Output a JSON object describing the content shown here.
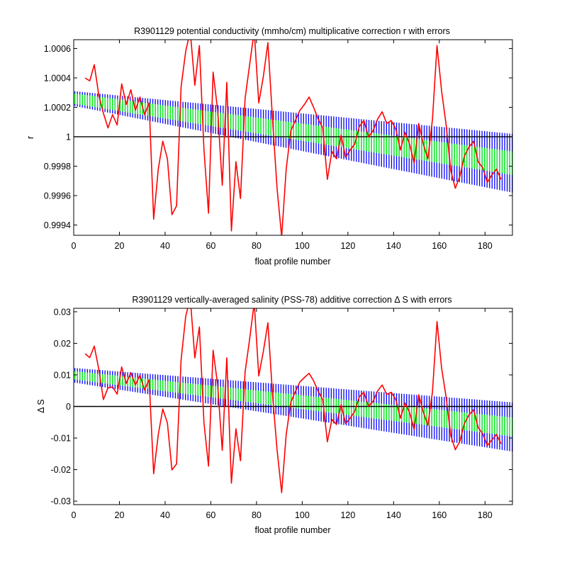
{
  "chart_data": [
    {
      "type": "line",
      "title": "R3901129 potential conductivity (mmho/cm) multiplicative correction r with errors",
      "xlabel": "float profile number",
      "ylabel": "r",
      "xlim": [
        0,
        192
      ],
      "ylim": [
        0.99933,
        1.00066
      ],
      "xticks": [
        "0",
        "20",
        "40",
        "60",
        "80",
        "100",
        "120",
        "140",
        "160",
        "180"
      ],
      "yticks": [
        {
          "value": 0.9994,
          "label": "0.9994"
        },
        {
          "value": 0.9996,
          "label": "0.9996"
        },
        {
          "value": 0.9998,
          "label": "0.9998"
        },
        {
          "value": 1.0,
          "label": "1"
        },
        {
          "value": 1.0002,
          "label": "1.0002"
        },
        {
          "value": 1.0004,
          "label": "1.0004"
        },
        {
          "value": 1.0006,
          "label": "1.0006"
        }
      ],
      "reference_line": 1.0,
      "grid": false,
      "colors": {
        "red": "#ff0000",
        "green": "#00ff00",
        "blue": "#0000ff",
        "axis": "#000000"
      },
      "trend": {
        "x": [
          0,
          192
        ],
        "center": [
          1.00026,
          0.99982
        ],
        "green_halfwidth": [
          3.5e-05,
          8e-05
        ],
        "blue_halfwidth": [
          5e-05,
          0.0002
        ]
      },
      "series": [
        {
          "x": [
            5,
            7,
            9,
            11,
            13,
            15,
            17,
            19,
            21,
            23,
            25,
            27,
            29,
            31,
            33,
            35,
            37,
            39,
            41,
            43,
            45,
            47,
            49,
            51,
            53,
            55,
            57,
            59,
            61,
            63,
            65,
            67,
            69,
            71,
            73,
            75,
            77,
            79,
            81,
            83,
            85,
            87,
            89,
            91,
            93,
            95,
            97,
            99,
            101,
            103,
            105,
            107,
            109,
            111,
            113,
            115,
            117,
            119,
            121,
            123,
            125,
            127,
            129,
            131,
            133,
            135,
            137,
            139,
            141,
            143,
            145,
            147,
            149,
            151,
            153,
            155,
            157,
            159,
            161,
            163,
            165,
            167,
            169,
            171,
            173,
            175,
            177,
            179,
            181,
            183,
            185,
            187
          ],
          "y": [
            1.0004,
            1.00038,
            1.00049,
            1.00028,
            1.00016,
            1.00006,
            1.00015,
            1.00008,
            1.00036,
            1.00022,
            1.00032,
            1.00018,
            1.00027,
            1.00015,
            1.00023,
            0.99944,
            0.99978,
            0.99997,
            0.99985,
            0.99947,
            0.99953,
            1.00034,
            1.00058,
            1.00072,
            1.00035,
            1.00062,
            0.99991,
            0.99948,
            1.00044,
            1.00018,
            0.99967,
            1.00037,
            0.99936,
            0.99983,
            0.99958,
            1.00026,
            1.00049,
            1.00072,
            1.00023,
            1.00041,
            1.00064,
            1.00012,
            0.99965,
            0.99932,
            0.99978,
            1.00004,
            1.00011,
            1.00018,
            1.00022,
            1.00027,
            1.0002,
            1.00012,
            1.00006,
            0.99971,
            0.9999,
            0.99985,
            1.00001,
            0.99986,
            0.99991,
            0.99995,
            1.00007,
            1.00011,
            1.0,
            1.00004,
            1.00012,
            1.00017,
            1.00009,
            1.00011,
            1.00005,
            0.99991,
            1.00003,
            0.99995,
            0.99982,
            1.00009,
            0.99995,
            0.99985,
            1.00012,
            1.00062,
            1.00031,
            1.00008,
            0.99977,
            0.99965,
            0.99973,
            0.99987,
            0.99993,
            0.99997,
            0.99983,
            0.99979,
            0.99969,
            0.99974,
            0.99978,
            0.99971
          ]
        }
      ]
    },
    {
      "type": "line",
      "title": "R3901129 vertically-averaged salinity (PSS-78) additive correction Δ S with errors",
      "xlabel": "float profile number",
      "ylabel": "Δ S",
      "xlim": [
        0,
        192
      ],
      "ylim": [
        -0.0311,
        0.0311
      ],
      "xticks": [
        "0",
        "20",
        "40",
        "60",
        "80",
        "100",
        "120",
        "140",
        "160",
        "180"
      ],
      "yticks": [
        {
          "value": -0.03,
          "label": "-0.03"
        },
        {
          "value": -0.02,
          "label": "-0.02"
        },
        {
          "value": -0.01,
          "label": "-0.01"
        },
        {
          "value": 0.0,
          "label": "0"
        },
        {
          "value": 0.01,
          "label": "0.01"
        },
        {
          "value": 0.02,
          "label": "0.02"
        },
        {
          "value": 0.03,
          "label": "0.03"
        }
      ],
      "reference_line": 0.0,
      "grid": false,
      "colors": {
        "red": "#ff0000",
        "green": "#00ff00",
        "blue": "#0000ff",
        "axis": "#000000"
      },
      "trend": {
        "x": [
          0,
          192
        ],
        "center": [
          0.0099,
          -0.0065
        ],
        "green_halfwidth": [
          0.0013,
          0.003
        ],
        "blue_halfwidth": [
          0.0023,
          0.0078
        ]
      },
      "series": [
        {
          "x": [
            5,
            7,
            9,
            11,
            13,
            15,
            17,
            19,
            21,
            23,
            25,
            27,
            29,
            31,
            33,
            35,
            37,
            39,
            41,
            43,
            45,
            47,
            49,
            51,
            53,
            55,
            57,
            59,
            61,
            63,
            65,
            67,
            69,
            71,
            73,
            75,
            77,
            79,
            81,
            83,
            85,
            87,
            89,
            91,
            93,
            95,
            97,
            99,
            101,
            103,
            105,
            107,
            109,
            111,
            113,
            115,
            117,
            119,
            121,
            123,
            125,
            127,
            129,
            131,
            133,
            135,
            137,
            139,
            141,
            143,
            145,
            147,
            149,
            151,
            153,
            155,
            157,
            159,
            161,
            163,
            165,
            167,
            169,
            171,
            173,
            175,
            177,
            179,
            181,
            183,
            185,
            187
          ],
          "y": [
            0.0167,
            0.0155,
            0.0191,
            0.0117,
            0.0022,
            0.0059,
            0.0062,
            0.0039,
            0.0125,
            0.0073,
            0.0107,
            0.0068,
            0.0099,
            0.0052,
            0.0085,
            -0.0213,
            -0.0089,
            -0.0008,
            -0.0052,
            -0.0201,
            -0.0182,
            0.0147,
            0.0285,
            0.0345,
            0.0154,
            0.0252,
            -0.0052,
            -0.0189,
            0.0178,
            0.0068,
            -0.0139,
            0.0154,
            -0.0243,
            -0.0071,
            -0.0172,
            0.0109,
            0.0213,
            0.0329,
            0.0097,
            0.0175,
            0.0265,
            0.0038,
            -0.0137,
            -0.0273,
            -0.0089,
            0.0013,
            0.0047,
            0.0078,
            0.0092,
            0.0105,
            0.0081,
            0.0048,
            0.0021,
            -0.0112,
            -0.0041,
            -0.0057,
            0.0005,
            -0.0054,
            -0.0037,
            -0.0016,
            0.0031,
            0.0045,
            0.0001,
            0.0016,
            0.0049,
            0.0068,
            0.0038,
            0.0045,
            0.0021,
            -0.0037,
            0.0011,
            -0.0019,
            -0.0073,
            0.0037,
            -0.0018,
            -0.006,
            0.0047,
            0.0269,
            0.0121,
            0.0029,
            -0.0092,
            -0.0137,
            -0.0111,
            -0.0053,
            -0.0027,
            -0.001,
            -0.0067,
            -0.0086,
            -0.0124,
            -0.0106,
            -0.0089,
            -0.0118
          ]
        }
      ]
    }
  ]
}
